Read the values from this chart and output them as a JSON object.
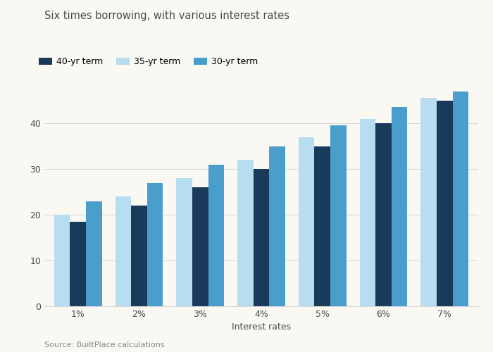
{
  "title": "Six times borrowing, with various interest rates",
  "xlabel": "Interest rates",
  "source": "Source: BuiltPlace calculations",
  "categories": [
    "1%",
    "2%",
    "3%",
    "4%",
    "5%",
    "6%",
    "7%"
  ],
  "series": {
    "40-yr term": [
      18.5,
      22.0,
      26.0,
      30.0,
      35.0,
      40.0,
      45.0
    ],
    "35-yr term": [
      20.0,
      24.0,
      28.0,
      32.0,
      37.0,
      41.0,
      45.5
    ],
    "30-yr term": [
      23.0,
      27.0,
      31.0,
      35.0,
      39.5,
      43.5,
      47.0
    ]
  },
  "bar_order": [
    "35-yr term",
    "40-yr term",
    "30-yr term"
  ],
  "legend_order": [
    "40-yr term",
    "35-yr term",
    "30-yr term"
  ],
  "colors": {
    "40-yr term": "#1a3a5c",
    "35-yr term": "#b8ddf0",
    "30-yr term": "#4a9ecb"
  },
  "ylim": [
    0,
    50
  ],
  "yticks": [
    0,
    10,
    20,
    30,
    40
  ],
  "bar_width": 0.26,
  "figsize": [
    7.0,
    5.0
  ],
  "dpi": 100,
  "background_color": "#f9f8f3",
  "plot_bg_color": "#f9f8f3",
  "grid_color": "#d9d9d9",
  "title_fontsize": 10.5,
  "label_fontsize": 9,
  "tick_fontsize": 9,
  "source_fontsize": 8,
  "legend_fontsize": 9,
  "title_color": "#4a4a4a",
  "tick_color": "#4a4a4a",
  "label_color": "#4a4a4a"
}
